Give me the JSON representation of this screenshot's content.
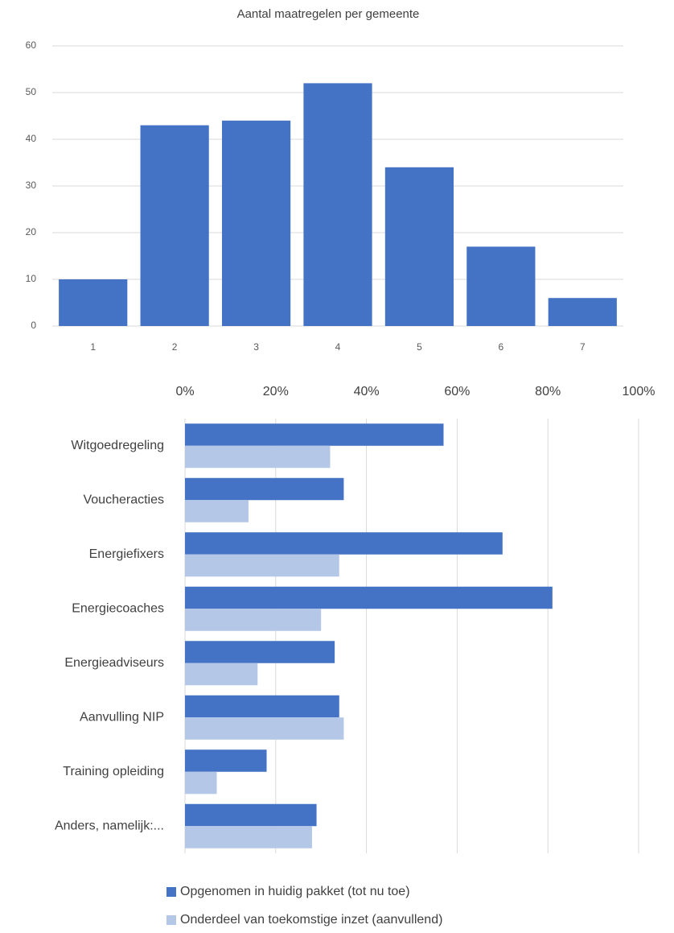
{
  "chart_data": [
    {
      "type": "bar",
      "title": "Aantal maatregelen per gemeente",
      "categories": [
        "1",
        "2",
        "3",
        "4",
        "5",
        "6",
        "7"
      ],
      "values": [
        10,
        43,
        44,
        52,
        34,
        17,
        6
      ],
      "color": "#4472c4",
      "ylim": [
        0,
        60
      ],
      "yticks": [
        0,
        10,
        20,
        30,
        40,
        50,
        60
      ],
      "grid": true
    },
    {
      "type": "bar",
      "orientation": "horizontal",
      "categories": [
        "Witgoedregeling",
        "Voucheracties",
        "Energiefixers",
        "Energiecoaches",
        "Energieadviseurs",
        "Aanvulling NIP",
        "Training opleiding",
        "Anders, namelijk:..."
      ],
      "series": [
        {
          "name": "Opgenomen in huidig pakket (tot nu toe)",
          "color": "#4472c4",
          "values": [
            57,
            35,
            70,
            81,
            33,
            34,
            18,
            29
          ]
        },
        {
          "name": "Onderdeel van toekomstige inzet (aanvullend)",
          "color": "#b4c7e7",
          "values": [
            32,
            14,
            34,
            30,
            16,
            35,
            7,
            28
          ]
        }
      ],
      "xlim": [
        0,
        100
      ],
      "xticks": [
        {
          "value": 0,
          "label": "0%"
        },
        {
          "value": 20,
          "label": "20%"
        },
        {
          "value": 40,
          "label": "40%"
        },
        {
          "value": 60,
          "label": "60%"
        },
        {
          "value": 80,
          "label": "80%"
        },
        {
          "value": 100,
          "label": "100%"
        }
      ],
      "grid": true,
      "legend": "bottom"
    }
  ]
}
